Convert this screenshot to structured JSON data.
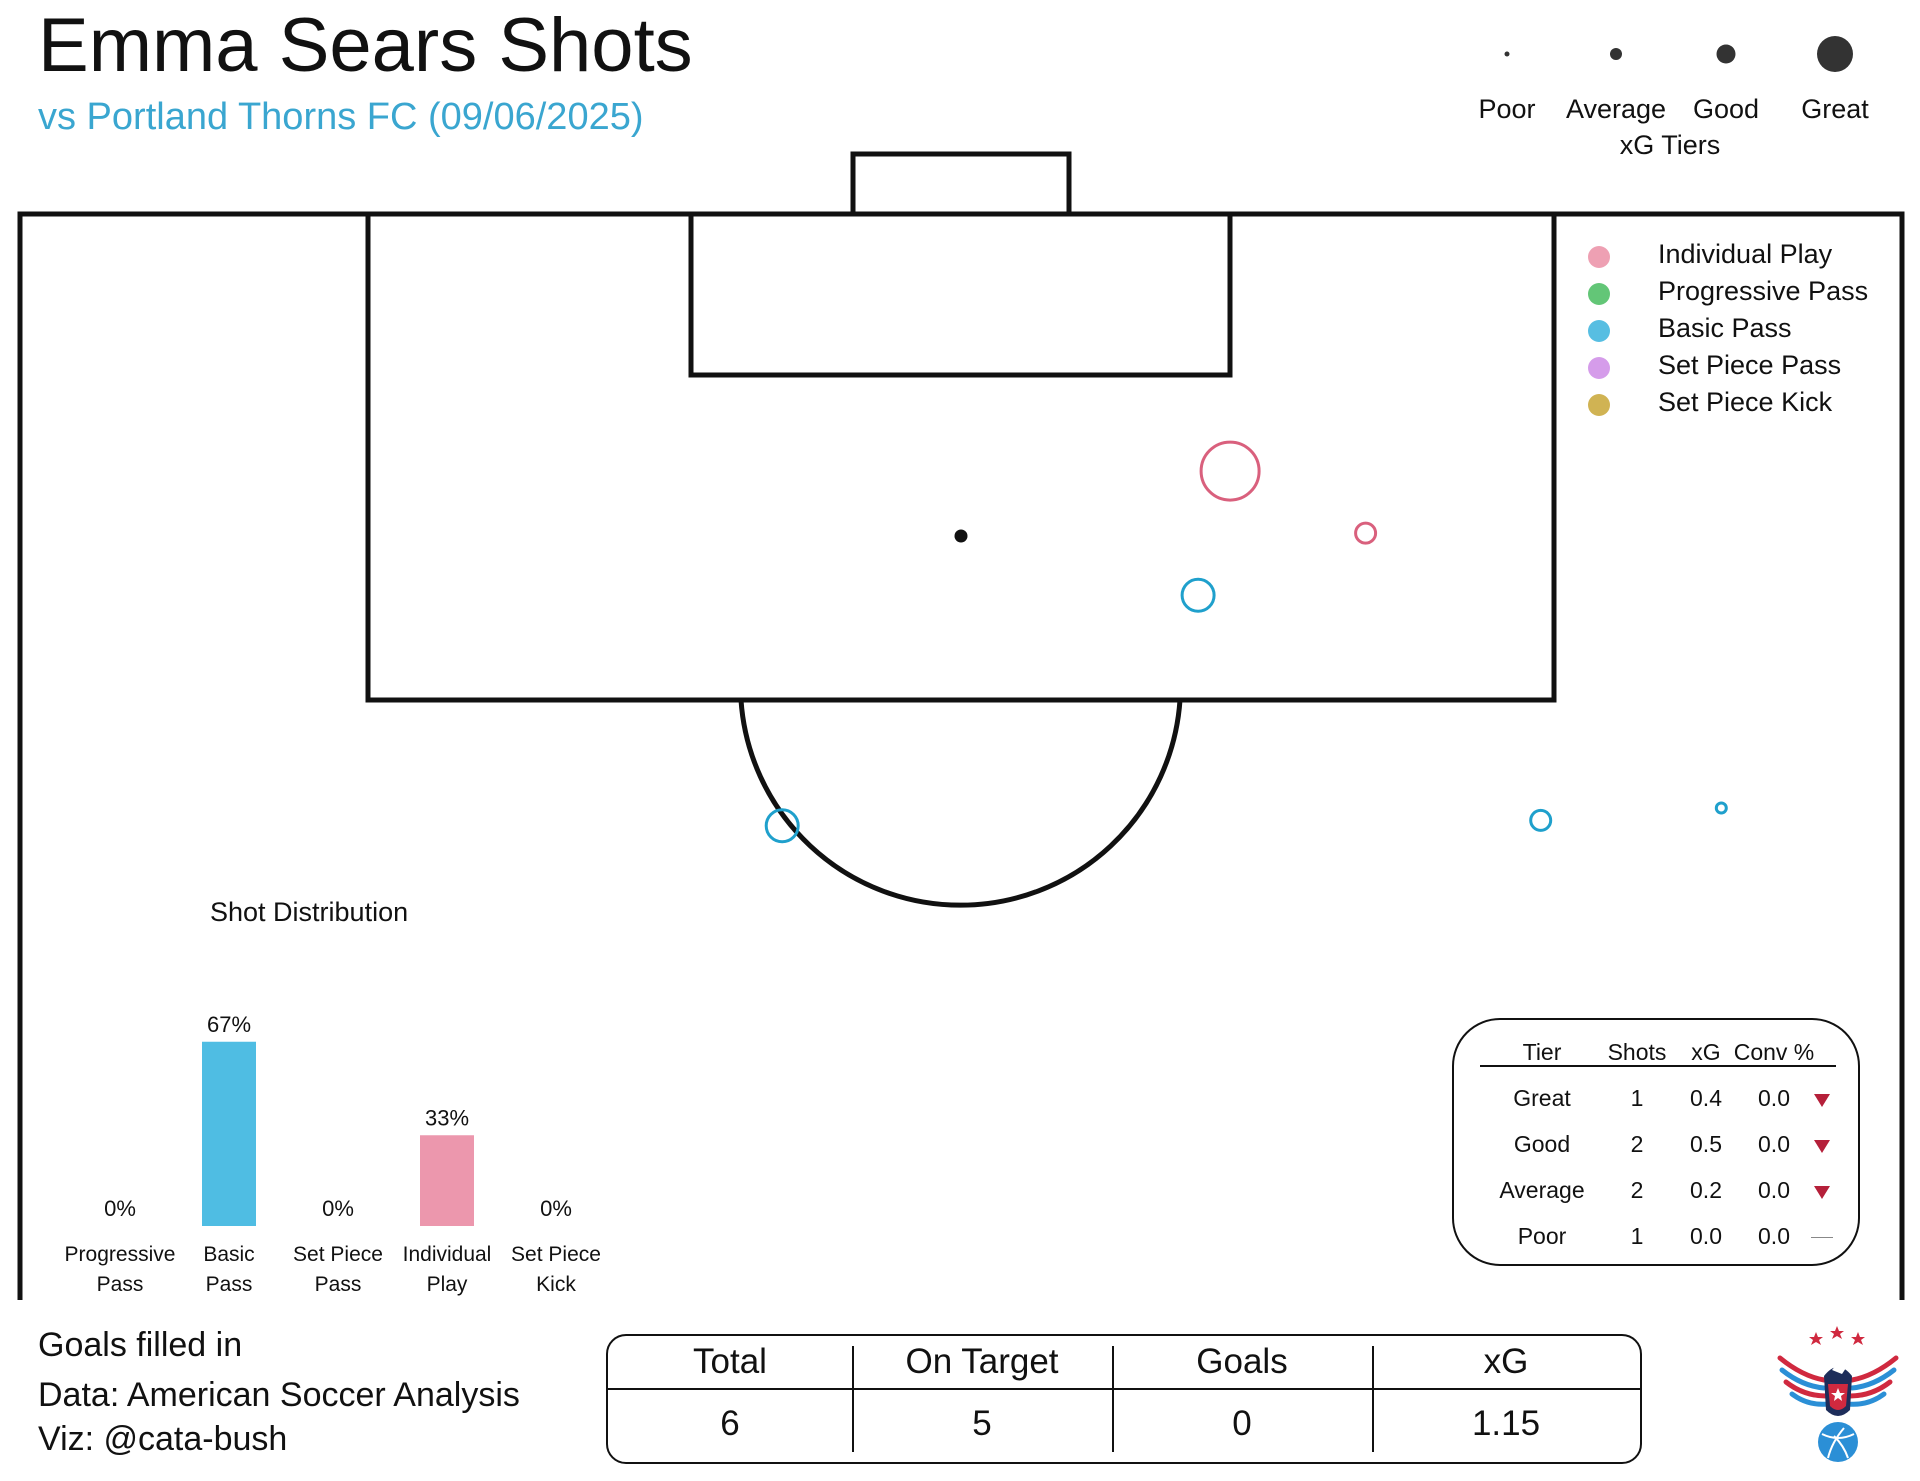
{
  "title": "Emma Sears Shots",
  "subtitle": "vs Portland Thorns FC (09/06/2025)",
  "xg_tiers": {
    "title": "xG Tiers",
    "tiers": [
      {
        "label": "Poor"
      },
      {
        "label": "Average"
      },
      {
        "label": "Good"
      },
      {
        "label": "Great"
      }
    ]
  },
  "shot_type_legend": [
    {
      "label": "Individual Play",
      "color": "#e8809a"
    },
    {
      "label": "Progressive Pass",
      "color": "#2fb34a"
    },
    {
      "label": "Basic Pass",
      "color": "#1fa8d8"
    },
    {
      "label": "Set Piece Pass",
      "color": "#c77be3"
    },
    {
      "label": "Set Piece Kick",
      "color": "#c09a1a"
    }
  ],
  "chart_data": [
    {
      "type": "scatter",
      "description_free": true,
      "pitch": "half-pitch, attacking goal at top",
      "points": [
        {
          "x": 64.3,
          "y": 85.5,
          "type": "Individual Play",
          "tier": "Great",
          "color": "#d9607d"
        },
        {
          "x": 71.5,
          "y": 82.0,
          "type": "Individual Play",
          "tier": "Average",
          "color": "#d9607d"
        },
        {
          "x": 62.6,
          "y": 78.5,
          "type": "Basic Pass",
          "tier": "Good",
          "color": "#1fa0cc"
        },
        {
          "x": 40.5,
          "y": 65.5,
          "type": "Basic Pass",
          "tier": "Good",
          "color": "#1fa0cc"
        },
        {
          "x": 80.8,
          "y": 65.8,
          "type": "Basic Pass",
          "tier": "Average",
          "color": "#1fa0cc"
        },
        {
          "x": 90.4,
          "y": 66.5,
          "type": "Basic Pass",
          "tier": "Poor",
          "color": "#1fa0cc"
        }
      ]
    },
    {
      "type": "bar",
      "title": "Shot Distribution",
      "categories": [
        "Progressive Pass",
        "Basic Pass",
        "Set Piece Pass",
        "Individual Play",
        "Set Piece Kick"
      ],
      "category_lines": [
        [
          "Progressive",
          "Pass"
        ],
        [
          "Basic",
          "Pass"
        ],
        [
          "Set Piece",
          "Pass"
        ],
        [
          "Individual",
          "Play"
        ],
        [
          "Set Piece",
          "Kick"
        ]
      ],
      "values": [
        0,
        67,
        0,
        33,
        0
      ],
      "value_labels": [
        "0%",
        "67%",
        "0%",
        "33%",
        "0%"
      ],
      "colors": [
        "#2fb34a",
        "#4fbde3",
        "#c77be3",
        "#ec97ad",
        "#c09a1a"
      ],
      "ylim": [
        0,
        100
      ]
    },
    {
      "type": "table",
      "columns": [
        "Tier",
        "Shots",
        "xG",
        "Conv %"
      ],
      "rows": [
        {
          "tier": "Great",
          "shots": "1",
          "xg": "0.4",
          "conv": "0.0",
          "trend": "down"
        },
        {
          "tier": "Good",
          "shots": "2",
          "xg": "0.5",
          "conv": "0.0",
          "trend": "down"
        },
        {
          "tier": "Average",
          "shots": "2",
          "xg": "0.2",
          "conv": "0.0",
          "trend": "down"
        },
        {
          "tier": "Poor",
          "shots": "1",
          "xg": "0.0",
          "conv": "0.0",
          "trend": "flat"
        }
      ]
    },
    {
      "type": "table",
      "columns": [
        "Total",
        "On Target",
        "Goals",
        "xG"
      ],
      "values": [
        "6",
        "5",
        "0",
        "1.15"
      ]
    }
  ],
  "footer": {
    "line1": "Goals filled in",
    "line2": "Data: American Soccer Analysis",
    "line3": "Viz: @cata-bush"
  },
  "colors": {
    "accent": "#3aa6d0",
    "down_arrow": "#b5203a",
    "logo_red": "#d0293f",
    "logo_blue": "#2b8fd6"
  }
}
